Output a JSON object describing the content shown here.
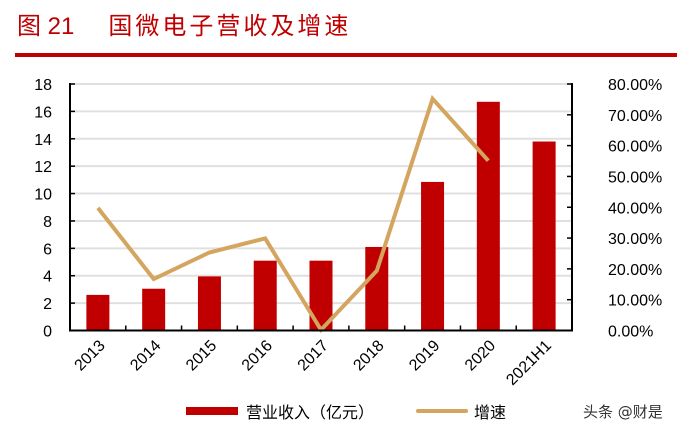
{
  "figure": {
    "label": "图 21",
    "title": "国微电子营收及增速",
    "accent_color": "#c00000",
    "line_color": "#d4a55f"
  },
  "legend": {
    "bar_label": "营业收入（亿元）",
    "line_label": "增速"
  },
  "watermark": "头条 @财是",
  "chart_data": {
    "type": "bar",
    "title": "国微电子营收及增速",
    "categories": [
      "2013",
      "2014",
      "2015",
      "2016",
      "2017",
      "2018",
      "2019",
      "2020",
      "2021H1"
    ],
    "series": [
      {
        "name": "营业收入（亿元）",
        "type": "bar",
        "axis": "left",
        "color": "#c00000",
        "values": [
          2.6,
          3.05,
          3.95,
          5.1,
          5.1,
          6.1,
          10.85,
          16.7,
          13.8
        ]
      },
      {
        "name": "增速",
        "type": "line",
        "axis": "right",
        "color": "#d4a55f",
        "values": [
          0.398,
          0.167,
          0.253,
          0.299,
          0.002,
          0.194,
          0.752,
          0.551,
          null
        ]
      }
    ],
    "left_axis": {
      "ylim": [
        0,
        18
      ],
      "ticks": [
        "0",
        "2",
        "4",
        "6",
        "8",
        "10",
        "12",
        "14",
        "16",
        "18"
      ]
    },
    "right_axis": {
      "ylim": [
        0,
        0.8
      ],
      "ticks": [
        "0.00%",
        "10.00%",
        "20.00%",
        "30.00%",
        "40.00%",
        "50.00%",
        "60.00%",
        "70.00%",
        "80.00%"
      ]
    },
    "xlabel": "",
    "ylabel": "",
    "grid": true,
    "legend_position": "bottom"
  }
}
